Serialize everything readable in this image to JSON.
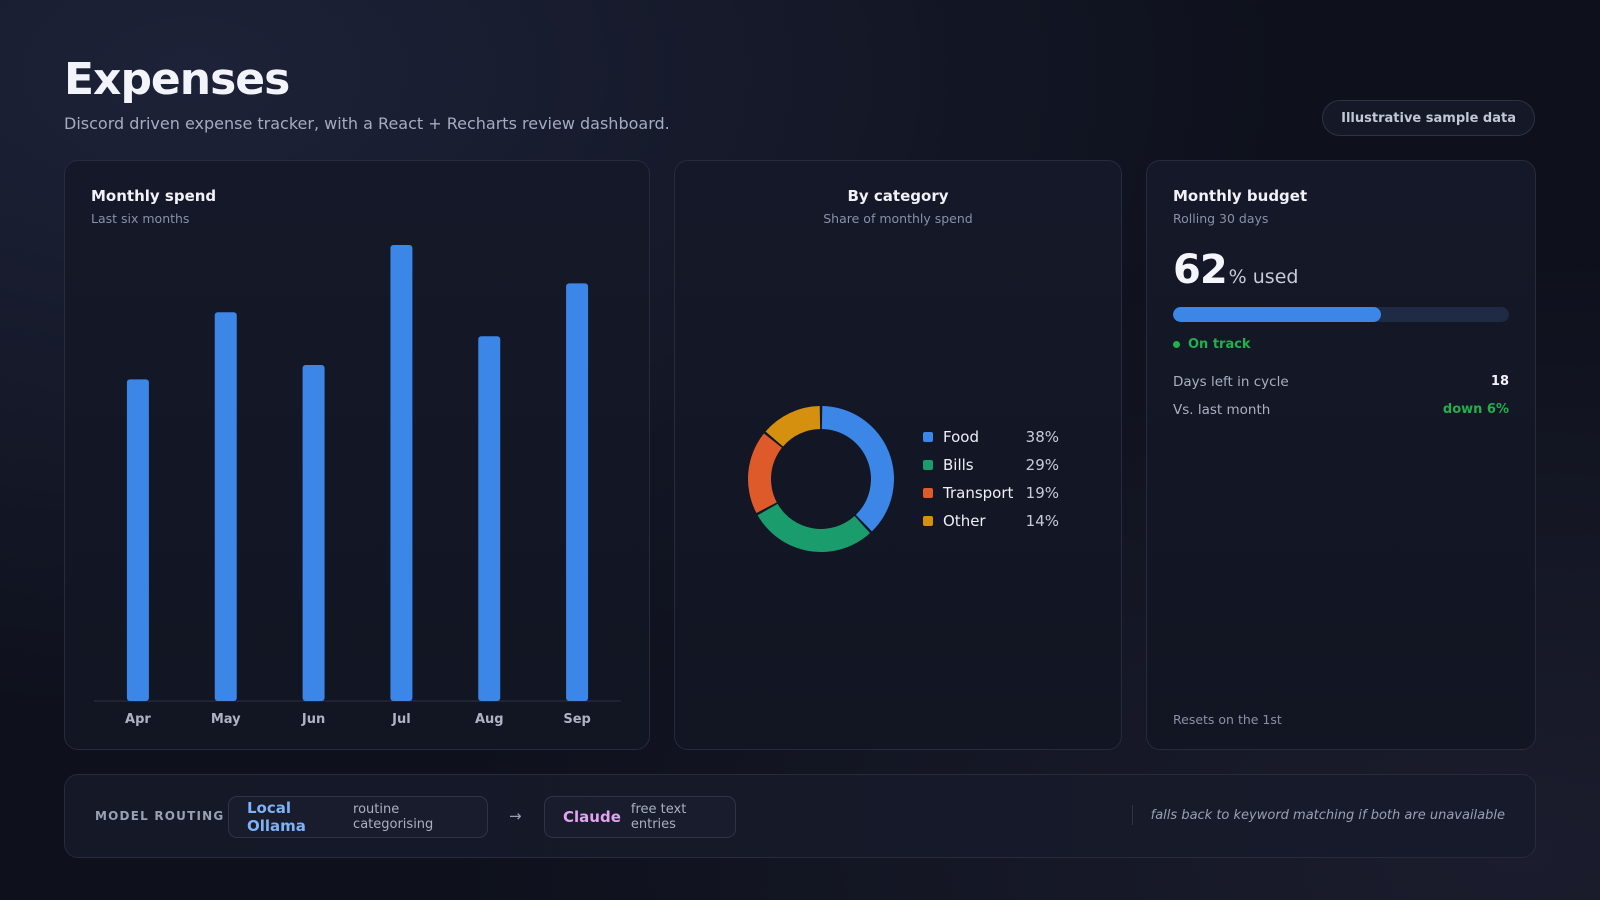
{
  "header": {
    "title": "Expenses",
    "subtitle": "Discord driven expense tracker, with a React + Recharts review dashboard.",
    "badge": "Illustrative sample data"
  },
  "spend_card": {
    "title": "Monthly spend",
    "subtitle": "Last six months"
  },
  "category_card": {
    "title": "By category",
    "subtitle": "Share of monthly spend",
    "legend": [
      {
        "name": "Food",
        "pct": "38%",
        "color": "#3b86e6"
      },
      {
        "name": "Bills",
        "pct": "29%",
        "color": "#1a9c6c"
      },
      {
        "name": "Transport",
        "pct": "19%",
        "color": "#de5a2a"
      },
      {
        "name": "Other",
        "pct": "14%",
        "color": "#d4900e"
      }
    ]
  },
  "budget_card": {
    "title": "Monthly budget",
    "subtitle": "Rolling 30 days",
    "percent_used": "62",
    "percent_suffix": "% used",
    "progress": 62,
    "status": "On track",
    "days_left_label": "Days left in cycle",
    "days_left_value": "18",
    "vs_last_label": "Vs. last month",
    "vs_last_value": "down 6%",
    "footer": "Resets on the 1st"
  },
  "routing": {
    "label": "MODEL ROUTING",
    "primary_name": "Local Ollama",
    "primary_desc": "routine categorising",
    "arrow": "→",
    "secondary_name": "Claude",
    "secondary_desc": "free text entries",
    "fallback": "falls back to keyword matching if both are unavailable"
  },
  "colors": {
    "accent": "#3b86e6",
    "success": "#22b04a"
  },
  "chart_data": [
    {
      "type": "bar",
      "title": "Monthly spend",
      "subtitle": "Last six months",
      "categories": [
        "Apr",
        "May",
        "Jun",
        "Jul",
        "Aug",
        "Sep"
      ],
      "values": [
        67,
        81,
        70,
        95,
        76,
        87
      ],
      "ylim": [
        0,
        100
      ],
      "grid": false,
      "color": "#3b86e6"
    },
    {
      "type": "pie",
      "title": "By category",
      "subtitle": "Share of monthly spend",
      "categories": [
        "Food",
        "Bills",
        "Transport",
        "Other"
      ],
      "values": [
        38,
        29,
        19,
        14
      ],
      "colors": [
        "#3b86e6",
        "#1a9c6c",
        "#de5a2a",
        "#d4900e"
      ],
      "legend": "right"
    }
  ]
}
